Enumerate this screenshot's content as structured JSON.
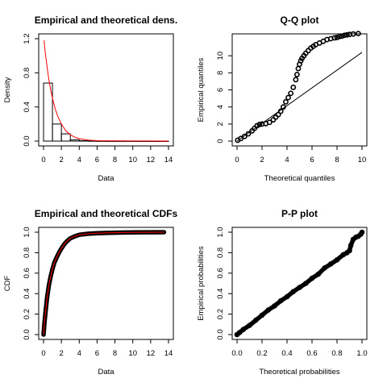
{
  "chart_data": [
    {
      "type": "bar",
      "title": "Empirical and theoretical dens.",
      "xlabel": "Data",
      "ylabel": "Density",
      "xlim": [
        0,
        14
      ],
      "ylim": [
        0,
        1.2
      ],
      "xticks": [
        "0",
        "2",
        "4",
        "6",
        "8",
        "10",
        "12",
        "14"
      ],
      "yticks": [
        "0.0",
        "0.4",
        "0.8",
        "1.2"
      ],
      "bins": [
        [
          0,
          1
        ],
        [
          1,
          2
        ],
        [
          2,
          3
        ],
        [
          3,
          4
        ],
        [
          4,
          5
        ],
        [
          5,
          6
        ],
        [
          6,
          7
        ],
        [
          7,
          8
        ],
        [
          8,
          9
        ],
        [
          9,
          10
        ],
        [
          10,
          11
        ],
        [
          11,
          12
        ],
        [
          12,
          13
        ],
        [
          13,
          14
        ]
      ],
      "values": [
        0.68,
        0.2,
        0.085,
        0.015,
        0.005,
        0.003,
        0.002,
        0.001,
        0.001,
        0.001,
        0.0005,
        0.0005,
        0.0005,
        0.0005
      ],
      "curve": {
        "x": [
          0.05,
          0.2,
          0.4,
          0.6,
          0.8,
          1.0,
          1.3,
          1.6,
          2.0,
          2.5,
          3.0,
          3.5,
          4.0,
          5.0,
          6.0,
          8.0,
          10.0,
          12.0,
          14.0
        ],
        "y": [
          1.18,
          1.03,
          0.87,
          0.72,
          0.6,
          0.5,
          0.38,
          0.29,
          0.2,
          0.12,
          0.075,
          0.045,
          0.028,
          0.011,
          0.005,
          0.002,
          0.001,
          0.0005,
          0.0003
        ]
      }
    },
    {
      "type": "scatter",
      "title": "Q-Q plot",
      "xlabel": "Theoretical quantiles",
      "ylabel": "Empirical quantiles",
      "xlim": [
        0,
        10
      ],
      "ylim": [
        0,
        12
      ],
      "xticks": [
        "0",
        "2",
        "4",
        "6",
        "8",
        "10"
      ],
      "yticks": [
        "0",
        "2",
        "4",
        "6",
        "8",
        "10"
      ],
      "x": [
        0.05,
        0.3,
        0.6,
        0.9,
        1.2,
        1.4,
        1.6,
        1.8,
        2.0,
        2.3,
        2.6,
        2.9,
        3.1,
        3.3,
        3.5,
        3.7,
        3.9,
        4.1,
        4.3,
        4.5,
        4.7,
        4.8,
        4.9,
        5.0,
        5.1,
        5.2,
        5.35,
        5.5,
        5.7,
        5.9,
        6.1,
        6.3,
        6.6,
        6.9,
        7.2,
        7.5,
        7.8,
        8.0,
        8.2,
        8.4,
        8.6,
        8.8,
        9.0,
        9.3,
        9.7
      ],
      "y": [
        0.1,
        0.3,
        0.55,
        0.85,
        1.2,
        1.5,
        1.8,
        1.95,
        2.0,
        2.05,
        2.2,
        2.5,
        2.8,
        3.1,
        3.5,
        4.0,
        4.6,
        5.1,
        5.6,
        6.3,
        7.2,
        7.8,
        8.5,
        9.0,
        9.4,
        9.7,
        10.0,
        10.3,
        10.6,
        10.9,
        11.1,
        11.3,
        11.5,
        11.7,
        11.9,
        12.0,
        12.1,
        12.15,
        12.25,
        12.3,
        12.4,
        12.45,
        12.5,
        12.55,
        12.6
      ],
      "reference_line": {
        "x": [
          0,
          10
        ],
        "y": [
          0,
          10.4
        ]
      }
    },
    {
      "type": "line",
      "title": "Empirical and theoretical CDFs",
      "xlabel": "Data",
      "ylabel": "CDF",
      "xlim": [
        0,
        14
      ],
      "ylim": [
        0,
        1
      ],
      "xticks": [
        "0",
        "2",
        "4",
        "6",
        "8",
        "10",
        "12",
        "14"
      ],
      "yticks": [
        "0.0",
        "0.2",
        "0.4",
        "0.6",
        "0.8",
        "1.0"
      ],
      "x": [
        0.0,
        0.05,
        0.1,
        0.2,
        0.3,
        0.4,
        0.5,
        0.6,
        0.8,
        1.0,
        1.2,
        1.5,
        1.8,
        2.0,
        2.3,
        2.6,
        3.0,
        3.5,
        4.0,
        5.0,
        6.0,
        7.0,
        8.0,
        9.0,
        10.0,
        11.0,
        12.0,
        13.5
      ],
      "y": [
        0.0,
        0.06,
        0.11,
        0.2,
        0.28,
        0.36,
        0.42,
        0.48,
        0.57,
        0.64,
        0.7,
        0.76,
        0.81,
        0.84,
        0.88,
        0.91,
        0.94,
        0.96,
        0.975,
        0.985,
        0.99,
        0.993,
        0.995,
        0.997,
        0.998,
        0.999,
        0.9995,
        1.0
      ],
      "theoretical_color": "#ff0000",
      "empirical_color": "#000000"
    },
    {
      "type": "scatter",
      "title": "P-P plot",
      "xlabel": "Theoretical probabilities",
      "ylabel": "Empirical probabilities",
      "xlim": [
        0,
        1
      ],
      "ylim": [
        0,
        1
      ],
      "xticks": [
        "0.0",
        "0.2",
        "0.4",
        "0.6",
        "0.8",
        "1.0"
      ],
      "yticks": [
        "0.0",
        "0.2",
        "0.4",
        "0.6",
        "0.8",
        "1.0"
      ],
      "x": [
        0.0,
        0.02,
        0.05,
        0.1,
        0.15,
        0.2,
        0.25,
        0.3,
        0.35,
        0.4,
        0.45,
        0.5,
        0.55,
        0.6,
        0.65,
        0.7,
        0.75,
        0.8,
        0.85,
        0.88,
        0.9,
        0.91,
        0.93,
        0.95,
        0.97,
        0.99,
        1.0
      ],
      "y": [
        0.0,
        0.02,
        0.05,
        0.09,
        0.14,
        0.19,
        0.24,
        0.28,
        0.33,
        0.37,
        0.42,
        0.46,
        0.5,
        0.55,
        0.59,
        0.65,
        0.69,
        0.73,
        0.78,
        0.8,
        0.82,
        0.87,
        0.93,
        0.95,
        0.96,
        0.98,
        1.0
      ]
    }
  ]
}
